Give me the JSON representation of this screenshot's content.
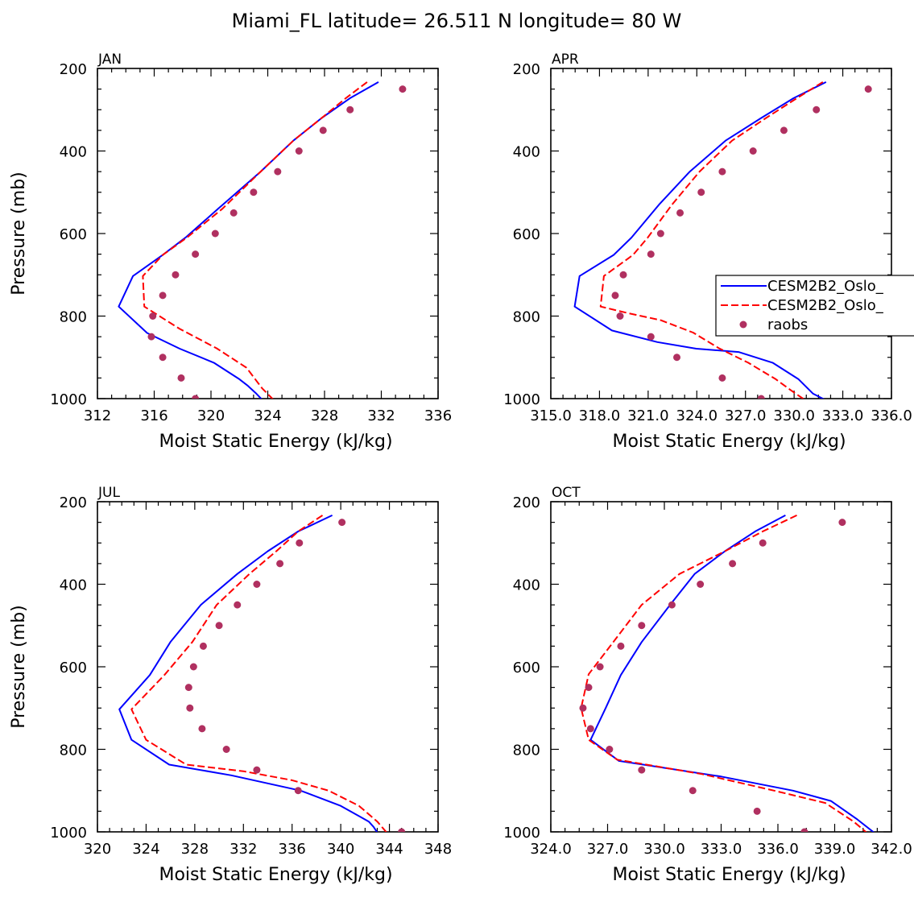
{
  "figure": {
    "title": "Miami_FL  latitude= 26.511 N longitude= 80 W"
  },
  "legend": {
    "entries": [
      {
        "label": "CESM2B2_Oslo_",
        "style": "solid",
        "color": "#0000ff"
      },
      {
        "label": "CESM2B2_Oslo_",
        "style": "dashed",
        "color": "#ff0000"
      },
      {
        "label": "raobs",
        "style": "marker",
        "color": "#b03060"
      }
    ]
  },
  "chart_data": [
    {
      "type": "line",
      "panel": "JAN",
      "title": "JAN",
      "xlabel": "Moist Static Energy (kJ/kg)",
      "ylabel": "Pressure (mb)",
      "xlim": [
        312,
        336
      ],
      "ylim": [
        1000,
        200
      ],
      "xticks": [
        "312",
        "316",
        "320",
        "324",
        "328",
        "332",
        "336"
      ],
      "yticks": [
        "200",
        "400",
        "600",
        "800",
        "1000"
      ],
      "series": [
        {
          "name": "CESM2B2_Oslo_ (solid)",
          "style": "solid",
          "color": "#0000ff",
          "x": [
            331.8,
            329.8,
            327.8,
            325.8,
            323.5,
            320.5,
            318.2,
            316.6,
            314.5,
            313.5,
            315.5,
            317.8,
            320.2,
            322.0,
            322.6,
            323.2,
            323.7
          ],
          "y": [
            233,
            272,
            320,
            375,
            450,
            540,
            610,
            652,
            703,
            777,
            841,
            879,
            913,
            953,
            969,
            988,
            1006
          ]
        },
        {
          "name": "CESM2B2_Oslo_ (dashed)",
          "style": "dashed",
          "color": "#ff0000",
          "x": [
            331.0,
            329.5,
            327.8,
            325.8,
            323.5,
            320.8,
            318.3,
            316.6,
            315.2,
            315.3,
            317.8,
            320.4,
            322.5,
            323.6,
            324.5
          ],
          "y": [
            233,
            272,
            320,
            375,
            450,
            540,
            610,
            652,
            703,
            777,
            831,
            878,
            925,
            975,
            1006
          ]
        },
        {
          "name": "raobs",
          "style": "marker",
          "color": "#b03060",
          "x": [
            333.5,
            329.8,
            327.9,
            326.2,
            324.7,
            323.0,
            321.6,
            320.3,
            318.9,
            317.5,
            316.6,
            315.9,
            315.8,
            316.6,
            317.9,
            318.9
          ],
          "y": [
            250,
            300,
            350,
            400,
            450,
            500,
            550,
            600,
            650,
            700,
            750,
            800,
            850,
            900,
            950,
            1000
          ]
        }
      ]
    },
    {
      "type": "line",
      "panel": "APR",
      "title": "APR",
      "xlabel": "Moist Static Energy (kJ/kg)",
      "ylabel": "",
      "xlim": [
        315.03,
        336.03
      ],
      "ylim": [
        1000,
        200
      ],
      "xticks": [
        "315.0",
        "318.0",
        "321.0",
        "324.0",
        "327.0",
        "330.0",
        "333.0",
        "336.0"
      ],
      "yticks": [
        "200",
        "400",
        "600",
        "800",
        "1000"
      ],
      "series": [
        {
          "name": "CESM2B2_Oslo_ (solid)",
          "style": "solid",
          "color": "#0000ff",
          "x": [
            332.0,
            330.0,
            328.0,
            325.8,
            323.6,
            321.7,
            320.0,
            318.9,
            316.8,
            316.5,
            318.8,
            321.6,
            324.0,
            326.6,
            328.7,
            330.3,
            331.2,
            332.1
          ],
          "y": [
            233,
            272,
            320,
            375,
            450,
            530,
            610,
            652,
            703,
            777,
            835,
            863,
            879,
            887,
            913,
            953,
            988,
            1006
          ]
        },
        {
          "name": "CESM2B2_Oslo_ (dashed)",
          "style": "dashed",
          "color": "#ff0000",
          "x": [
            331.8,
            330.2,
            328.3,
            326.2,
            324.2,
            322.5,
            321.0,
            320.1,
            318.3,
            318.1,
            319.8,
            321.8,
            323.8,
            325.4,
            327.2,
            328.9,
            329.8,
            330.8
          ],
          "y": [
            233,
            272,
            320,
            375,
            450,
            530,
            610,
            652,
            703,
            777,
            793,
            810,
            840,
            878,
            913,
            953,
            979,
            1006
          ]
        },
        {
          "name": "raobs",
          "style": "marker",
          "color": "#b03060",
          "x": [
            334.6,
            331.4,
            329.4,
            327.5,
            325.6,
            324.3,
            323.0,
            321.8,
            321.2,
            319.5,
            319.0,
            319.3,
            321.2,
            322.8,
            325.6,
            328.0
          ],
          "y": [
            250,
            300,
            350,
            400,
            450,
            500,
            550,
            600,
            650,
            700,
            750,
            800,
            850,
            900,
            950,
            1000
          ]
        }
      ]
    },
    {
      "type": "line",
      "panel": "JUL",
      "title": "JUL",
      "xlabel": "Moist Static Energy (kJ/kg)",
      "ylabel": "Pressure (mb)",
      "xlim": [
        320,
        348
      ],
      "ylim": [
        1000,
        200
      ],
      "xticks": [
        "320",
        "324",
        "328",
        "332",
        "336",
        "340",
        "344",
        "348"
      ],
      "yticks": [
        "200",
        "400",
        "600",
        "800",
        "1000"
      ],
      "series": [
        {
          "name": "CESM2B2_Oslo_ (solid)",
          "style": "solid",
          "color": "#0000ff",
          "x": [
            339.3,
            336.5,
            334.0,
            331.5,
            328.5,
            326.0,
            324.3,
            321.8,
            322.8,
            325.9,
            331.0,
            336.7,
            340.0,
            342.3,
            342.7,
            343.1
          ],
          "y": [
            233,
            272,
            320,
            375,
            450,
            540,
            620,
            703,
            777,
            837,
            863,
            900,
            937,
            975,
            988,
            1006
          ]
        },
        {
          "name": "CESM2B2_Oslo_ (dashed)",
          "style": "dashed",
          "color": "#ff0000",
          "x": [
            338.5,
            336.5,
            334.7,
            332.5,
            329.8,
            327.8,
            325.5,
            322.8,
            324.0,
            327.3,
            332.0,
            336.0,
            339.0,
            341.5,
            343.0,
            343.9
          ],
          "y": [
            233,
            272,
            320,
            375,
            450,
            540,
            620,
            703,
            777,
            837,
            853,
            875,
            900,
            937,
            975,
            1006
          ]
        },
        {
          "name": "raobs",
          "style": "marker",
          "color": "#b03060",
          "x": [
            340.1,
            336.6,
            335.0,
            333.1,
            331.5,
            330.0,
            328.7,
            327.9,
            327.5,
            327.6,
            328.6,
            330.6,
            333.1,
            336.5,
            345.0
          ],
          "y": [
            250,
            300,
            350,
            400,
            450,
            500,
            550,
            600,
            650,
            700,
            750,
            800,
            850,
            900,
            1000
          ]
        }
      ]
    },
    {
      "type": "line",
      "panel": "OCT",
      "title": "OCT",
      "xlabel": "Moist Static Energy (kJ/kg)",
      "ylabel": "",
      "xlim": [
        324.0,
        342.0
      ],
      "ylim": [
        1000,
        200
      ],
      "xticks": [
        "324.0",
        "327.0",
        "330.0",
        "333.0",
        "336.0",
        "339.0",
        "342.0"
      ],
      "yticks": [
        "200",
        "400",
        "600",
        "800",
        "1000"
      ],
      "series": [
        {
          "name": "CESM2B2_Oslo_ (solid)",
          "style": "solid",
          "color": "#0000ff",
          "x": [
            336.4,
            334.8,
            333.2,
            331.6,
            330.3,
            328.8,
            327.7,
            326.9,
            326.1,
            327.6,
            333.0,
            336.8,
            338.8,
            340.2,
            341.2
          ],
          "y": [
            233,
            272,
            320,
            375,
            450,
            540,
            620,
            700,
            777,
            828,
            866,
            900,
            925,
            970,
            1006
          ]
        },
        {
          "name": "CESM2B2_Oslo_ (dashed)",
          "style": "dashed",
          "color": "#ff0000",
          "x": [
            337.0,
            335.2,
            333.2,
            330.8,
            328.8,
            327.3,
            326.0,
            325.6,
            326.0,
            327.5,
            332.0,
            335.8,
            338.5,
            340.0,
            340.8
          ],
          "y": [
            233,
            272,
            320,
            375,
            450,
            540,
            618,
            700,
            777,
            825,
            860,
            900,
            930,
            975,
            1006
          ]
        },
        {
          "name": "raobs",
          "style": "marker",
          "color": "#b03060",
          "x": [
            339.4,
            335.2,
            333.6,
            331.9,
            330.4,
            328.8,
            327.7,
            326.6,
            326.0,
            325.7,
            326.1,
            327.1,
            328.8,
            331.5,
            334.9,
            337.4
          ],
          "y": [
            250,
            300,
            350,
            400,
            450,
            500,
            550,
            600,
            650,
            700,
            750,
            800,
            850,
            900,
            950,
            1000
          ]
        }
      ]
    }
  ]
}
